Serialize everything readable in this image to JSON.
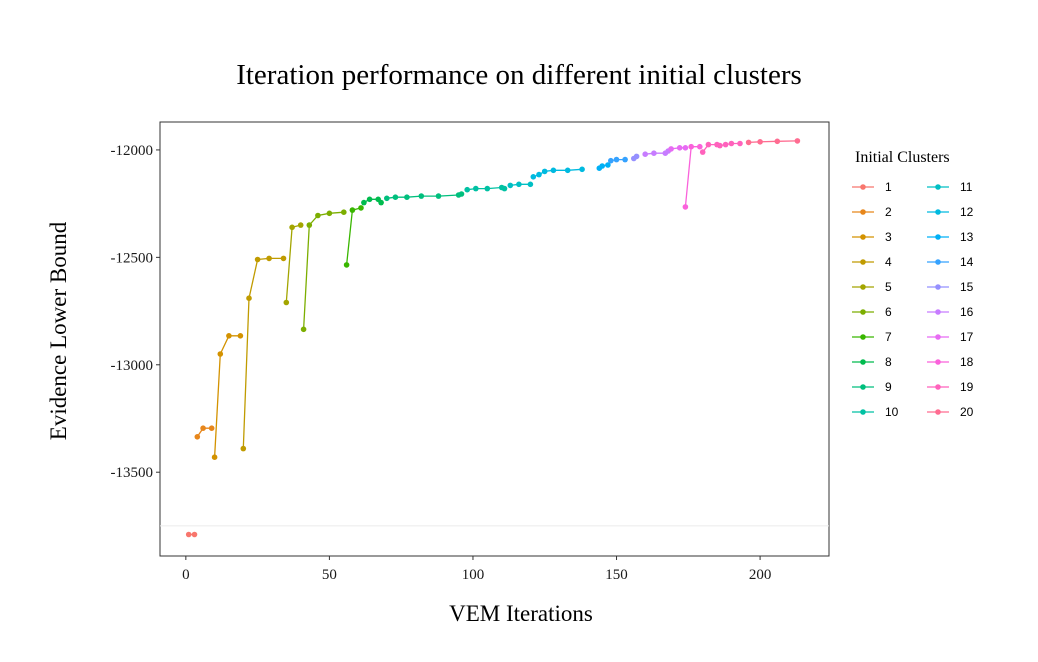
{
  "chart_data": {
    "type": "line",
    "title": "Iteration performance on different initial clusters",
    "xlabel": "VEM Iterations",
    "ylabel": "Evidence Lower Bound",
    "xlim": [
      -9,
      224
    ],
    "ylim": [
      -13890,
      -11870
    ],
    "x_ticks": [
      0,
      50,
      100,
      150,
      200
    ],
    "y_ticks": [
      -12000,
      -12500,
      -13000,
      -13500
    ],
    "x_tick_labels": [
      "0",
      "50",
      "100",
      "150",
      "200"
    ],
    "y_tick_labels": [
      "-12000",
      "-12500",
      "-13000",
      "-13500"
    ],
    "hline": -13750,
    "grid": false,
    "legend": {
      "title": "Initial Clusters",
      "position": "right",
      "columns": 2
    },
    "series": [
      {
        "name": "1",
        "color": "#F8766D",
        "points": [
          [
            1,
            -13790
          ],
          [
            3,
            -13790
          ]
        ]
      },
      {
        "name": "2",
        "color": "#E7861B",
        "points": [
          [
            4,
            -13335
          ],
          [
            6,
            -13295
          ],
          [
            9,
            -13295
          ]
        ]
      },
      {
        "name": "3",
        "color": "#D39200",
        "points": [
          [
            10,
            -13430
          ],
          [
            12,
            -12950
          ],
          [
            15,
            -12865
          ],
          [
            19,
            -12865
          ]
        ]
      },
      {
        "name": "4",
        "color": "#C09B00",
        "points": [
          [
            20,
            -13390
          ],
          [
            22,
            -12690
          ],
          [
            25,
            -12510
          ],
          [
            29,
            -12505
          ],
          [
            34,
            -12505
          ]
        ]
      },
      {
        "name": "5",
        "color": "#A3A500",
        "points": [
          [
            35,
            -12710
          ],
          [
            37,
            -12360
          ],
          [
            40,
            -12350
          ]
        ]
      },
      {
        "name": "6",
        "color": "#7CAE00",
        "points": [
          [
            41,
            -12835
          ],
          [
            43,
            -12350
          ],
          [
            46,
            -12305
          ],
          [
            50,
            -12295
          ],
          [
            55,
            -12290
          ]
        ]
      },
      {
        "name": "7",
        "color": "#39B600",
        "points": [
          [
            56,
            -12535
          ],
          [
            58,
            -12280
          ],
          [
            61,
            -12270
          ]
        ]
      },
      {
        "name": "8",
        "color": "#00BB4E",
        "points": [
          [
            62,
            -12245
          ],
          [
            64,
            -12230
          ],
          [
            67,
            -12230
          ],
          [
            68,
            -12245
          ]
        ]
      },
      {
        "name": "9",
        "color": "#00BF7D",
        "points": [
          [
            70,
            -12225
          ],
          [
            73,
            -12220
          ],
          [
            77,
            -12220
          ],
          [
            82,
            -12215
          ],
          [
            88,
            -12215
          ],
          [
            95,
            -12210
          ],
          [
            96,
            -12205
          ]
        ]
      },
      {
        "name": "10",
        "color": "#00C1A3",
        "points": [
          [
            98,
            -12185
          ],
          [
            101,
            -12180
          ],
          [
            105,
            -12180
          ],
          [
            110,
            -12175
          ],
          [
            111,
            -12180
          ]
        ]
      },
      {
        "name": "11",
        "color": "#00BFC4",
        "points": [
          [
            113,
            -12165
          ],
          [
            116,
            -12160
          ],
          [
            120,
            -12160
          ]
        ]
      },
      {
        "name": "12",
        "color": "#00BAE0",
        "points": [
          [
            121,
            -12125
          ],
          [
            123,
            -12115
          ],
          [
            125,
            -12100
          ],
          [
            128,
            -12095
          ],
          [
            133,
            -12095
          ],
          [
            138,
            -12090
          ]
        ]
      },
      {
        "name": "13",
        "color": "#00B0F6",
        "points": [
          [
            144,
            -12085
          ],
          [
            145,
            -12075
          ],
          [
            147,
            -12070
          ]
        ]
      },
      {
        "name": "14",
        "color": "#35A2FF",
        "points": [
          [
            148,
            -12050
          ],
          [
            150,
            -12045
          ],
          [
            153,
            -12045
          ]
        ]
      },
      {
        "name": "15",
        "color": "#9590FF",
        "points": [
          [
            156,
            -12040
          ],
          [
            157,
            -12030
          ]
        ]
      },
      {
        "name": "16",
        "color": "#C77CFF",
        "points": [
          [
            160,
            -12020
          ],
          [
            163,
            -12015
          ],
          [
            167,
            -12015
          ],
          [
            168,
            -12005
          ]
        ]
      },
      {
        "name": "17",
        "color": "#E76BF3",
        "points": [
          [
            169,
            -11995
          ],
          [
            172,
            -11990
          ],
          [
            174,
            -11990
          ]
        ]
      },
      {
        "name": "18",
        "color": "#FA62DB",
        "points": [
          [
            174,
            -12265
          ],
          [
            176,
            -11985
          ],
          [
            179,
            -11985
          ]
        ]
      },
      {
        "name": "19",
        "color": "#FF62BC",
        "points": [
          [
            180,
            -12010
          ],
          [
            182,
            -11975
          ],
          [
            185,
            -11975
          ],
          [
            186,
            -11980
          ],
          [
            188,
            -11975
          ],
          [
            190,
            -11970
          ],
          [
            193,
            -11970
          ]
        ]
      },
      {
        "name": "20",
        "color": "#FF6C91",
        "points": [
          [
            196,
            -11965
          ],
          [
            200,
            -11962
          ],
          [
            206,
            -11960
          ],
          [
            213,
            -11958
          ]
        ]
      }
    ]
  }
}
